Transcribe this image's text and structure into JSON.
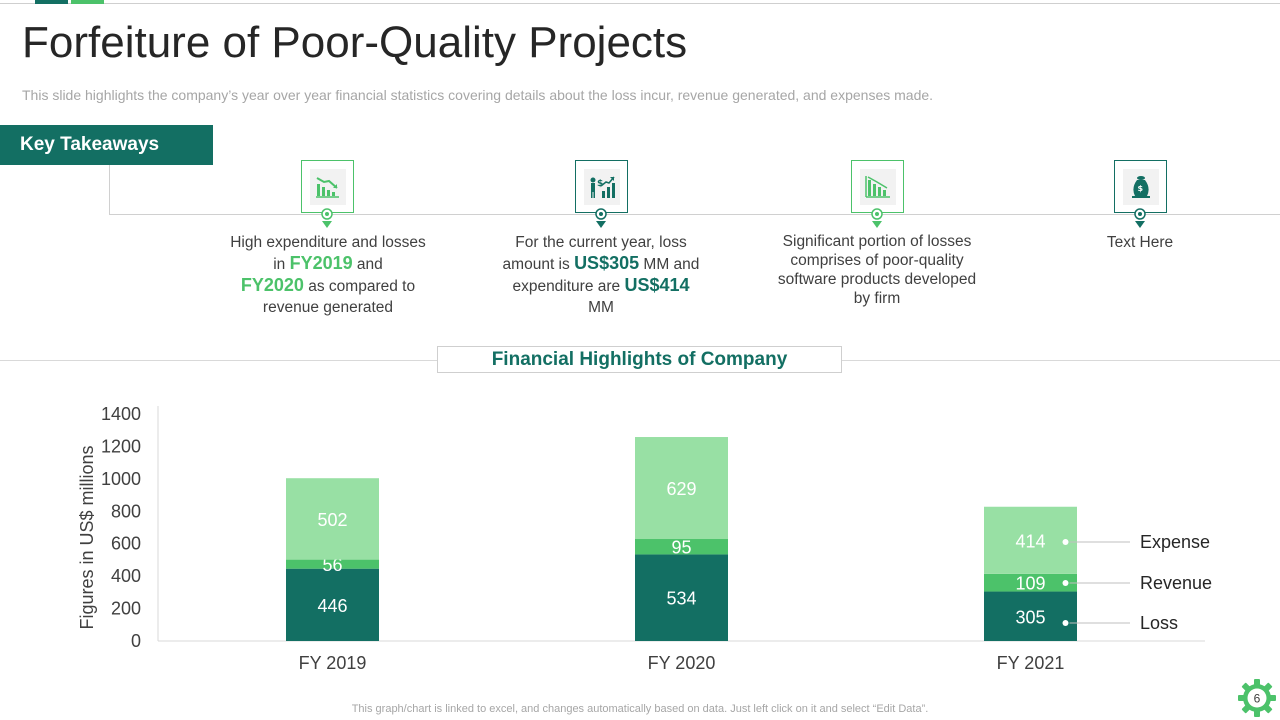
{
  "title": "Forfeiture of Poor-Quality Projects",
  "subtitle": "This slide highlights the company’s year over year financial statistics covering details about the loss incur, revenue generated, and expenses made.",
  "key_takeaways": {
    "label": "Key Takeaways",
    "items": [
      {
        "icon": "declining-chart-icon",
        "color": "#4cc26a",
        "parts": [
          {
            "t": "High expenditure and losses in "
          },
          {
            "t": "FY2019",
            "hl": "green"
          },
          {
            "t": " and "
          },
          {
            "t": "FY2020",
            "hl": "green"
          },
          {
            "t": " as compared to revenue generated"
          }
        ]
      },
      {
        "icon": "business-growth-icon",
        "color": "#136f63",
        "parts": [
          {
            "t": "For the current year, loss amount is "
          },
          {
            "t": "US$305",
            "hl": "teal"
          },
          {
            "t": " MM and expenditure are "
          },
          {
            "t": "US$414",
            "hl": "teal"
          },
          {
            "t": " MM"
          }
        ]
      },
      {
        "icon": "bar-decline-icon",
        "color": "#4cc26a",
        "parts": [
          {
            "t": "Significant portion of losses comprises of poor-quality software products developed by firm"
          }
        ]
      },
      {
        "icon": "money-bags-icon",
        "color": "#136f63",
        "parts": [
          {
            "t": "Text Here"
          }
        ]
      }
    ]
  },
  "financial_title": "Financial Highlights  of Company",
  "footer": "This graph/chart is linked to excel,  and changes automatically based on data. Just left click on it and select “Edit Data”.",
  "page_number": "6",
  "chart_data": {
    "type": "bar",
    "stacked": true,
    "categories": [
      "FY 2019",
      "FY 2020",
      "FY 2021"
    ],
    "series": [
      {
        "name": "Loss",
        "values": [
          446,
          534,
          305
        ],
        "color": "#136f63"
      },
      {
        "name": "Revenue",
        "values": [
          56,
          95,
          109
        ],
        "color": "#4cc26a"
      },
      {
        "name": "Expense",
        "values": [
          502,
          629,
          414
        ],
        "color": "#98e0a4"
      }
    ],
    "ylabel": "Figures in US$ millions",
    "ylim": [
      0,
      1400
    ],
    "yticks": [
      0,
      200,
      400,
      600,
      800,
      1000,
      1200,
      1400
    ],
    "legend_position": "right"
  }
}
